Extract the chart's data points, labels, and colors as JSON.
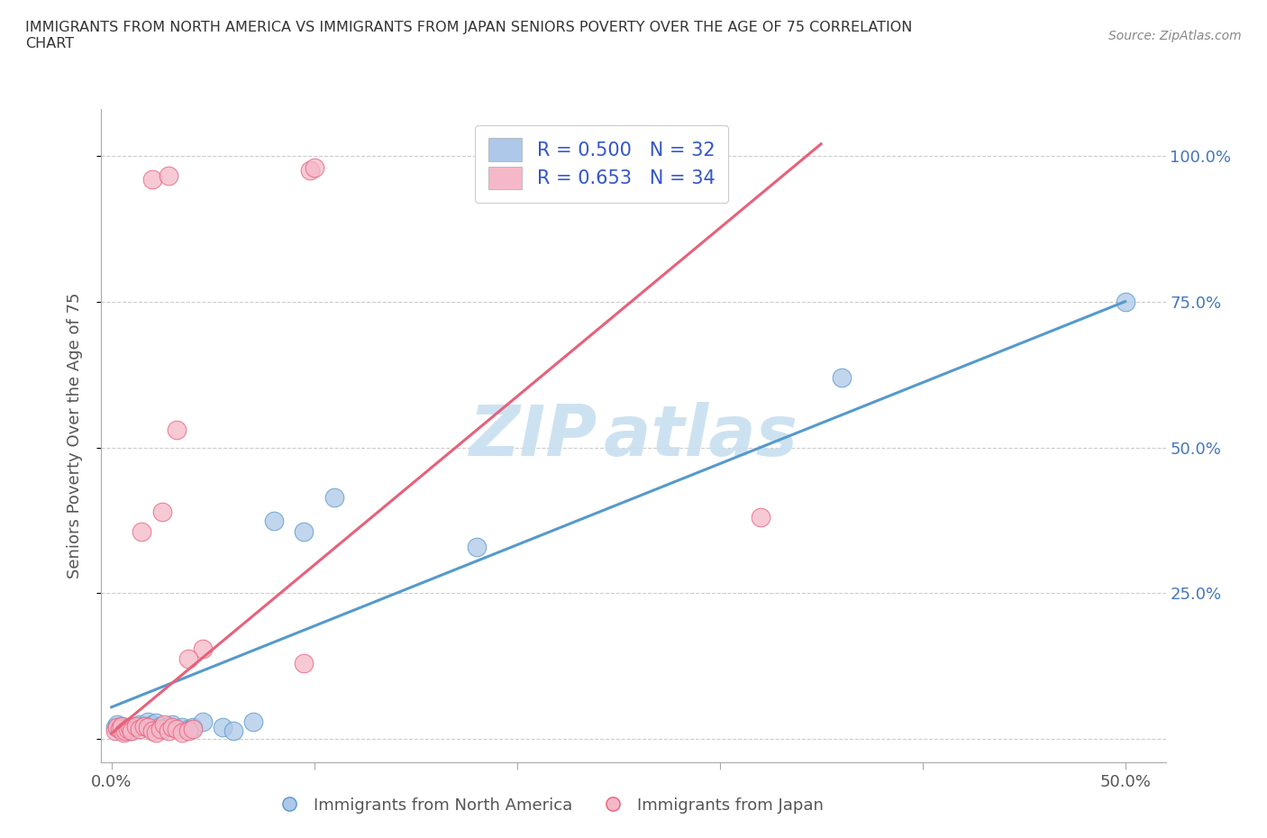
{
  "title": "IMMIGRANTS FROM NORTH AMERICA VS IMMIGRANTS FROM JAPAN SENIORS POVERTY OVER THE AGE OF 75 CORRELATION\nCHART",
  "source": "Source: ZipAtlas.com",
  "ylabel": "Seniors Poverty Over the Age of 75",
  "legend_label_1": "Immigrants from North America",
  "legend_label_2": "Immigrants from Japan",
  "R1": 0.5,
  "N1": 32,
  "R2": 0.653,
  "N2": 34,
  "color_blue": "#adc8e8",
  "color_pink": "#f5b8c8",
  "line_blue": "#5599cc",
  "line_pink": "#e8607a",
  "legend_text_color": "#3355cc",
  "watermark_color": "#c8dff0",
  "blue_scatter": [
    [
      0.002,
      0.02
    ],
    [
      0.003,
      0.025
    ],
    [
      0.004,
      0.018
    ],
    [
      0.005,
      0.022
    ],
    [
      0.006,
      0.015
    ],
    [
      0.007,
      0.018
    ],
    [
      0.008,
      0.02
    ],
    [
      0.009,
      0.015
    ],
    [
      0.01,
      0.022
    ],
    [
      0.012,
      0.02
    ],
    [
      0.014,
      0.025
    ],
    [
      0.016,
      0.022
    ],
    [
      0.018,
      0.03
    ],
    [
      0.02,
      0.025
    ],
    [
      0.022,
      0.028
    ],
    [
      0.024,
      0.022
    ],
    [
      0.026,
      0.018
    ],
    [
      0.028,
      0.022
    ],
    [
      0.03,
      0.025
    ],
    [
      0.035,
      0.02
    ],
    [
      0.038,
      0.018
    ],
    [
      0.04,
      0.02
    ],
    [
      0.045,
      0.03
    ],
    [
      0.055,
      0.02
    ],
    [
      0.06,
      0.015
    ],
    [
      0.07,
      0.03
    ],
    [
      0.08,
      0.375
    ],
    [
      0.095,
      0.355
    ],
    [
      0.11,
      0.415
    ],
    [
      0.18,
      0.33
    ],
    [
      0.36,
      0.62
    ],
    [
      0.5,
      0.75
    ]
  ],
  "pink_scatter": [
    [
      0.002,
      0.015
    ],
    [
      0.003,
      0.02
    ],
    [
      0.004,
      0.018
    ],
    [
      0.005,
      0.022
    ],
    [
      0.006,
      0.012
    ],
    [
      0.007,
      0.015
    ],
    [
      0.008,
      0.018
    ],
    [
      0.009,
      0.02
    ],
    [
      0.01,
      0.015
    ],
    [
      0.012,
      0.022
    ],
    [
      0.014,
      0.018
    ],
    [
      0.016,
      0.022
    ],
    [
      0.018,
      0.02
    ],
    [
      0.02,
      0.015
    ],
    [
      0.022,
      0.012
    ],
    [
      0.024,
      0.018
    ],
    [
      0.026,
      0.025
    ],
    [
      0.028,
      0.015
    ],
    [
      0.03,
      0.02
    ],
    [
      0.032,
      0.018
    ],
    [
      0.035,
      0.012
    ],
    [
      0.038,
      0.015
    ],
    [
      0.04,
      0.018
    ],
    [
      0.015,
      0.355
    ],
    [
      0.025,
      0.39
    ],
    [
      0.032,
      0.53
    ],
    [
      0.045,
      0.155
    ],
    [
      0.32,
      0.38
    ],
    [
      0.095,
      0.13
    ],
    [
      0.098,
      0.975
    ],
    [
      0.1,
      0.98
    ],
    [
      0.038,
      0.138
    ],
    [
      0.02,
      0.96
    ],
    [
      0.028,
      0.965
    ]
  ],
  "blue_line": [
    [
      0.0,
      0.055
    ],
    [
      0.5,
      0.75
    ]
  ],
  "pink_line": [
    [
      0.0,
      0.01
    ],
    [
      0.35,
      1.02
    ]
  ],
  "xlim": [
    -0.005,
    0.52
  ],
  "ylim": [
    -0.04,
    1.08
  ],
  "xtick_pos": [
    0.0,
    0.1,
    0.2,
    0.3,
    0.4,
    0.5
  ],
  "xtick_labels": [
    "0.0%",
    "",
    "",
    "",
    "",
    "50.0%"
  ],
  "ytick_pos": [
    0.0,
    0.25,
    0.5,
    0.75,
    1.0
  ],
  "ytick_labels": [
    "",
    "25.0%",
    "50.0%",
    "75.0%",
    "100.0%"
  ]
}
